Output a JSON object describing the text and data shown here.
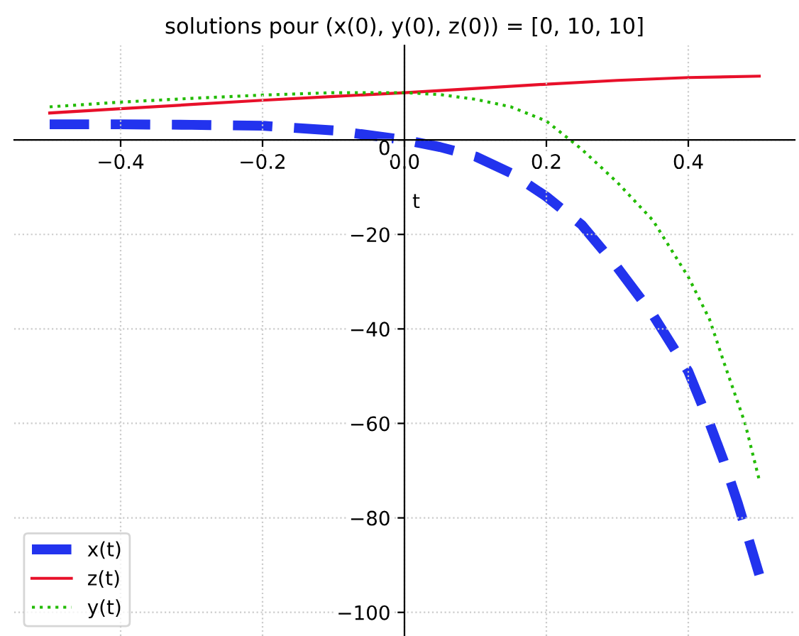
{
  "chart_data": {
    "type": "line",
    "title": "solutions pour (x(0), y(0), z(0)) = [0, 10, 10]",
    "xlabel": "t",
    "xlim": [
      -0.55,
      0.55
    ],
    "ylim": [
      -105,
      20
    ],
    "xticks": [
      -0.4,
      -0.2,
      {
        "value": 0,
        "label": "0.0"
      },
      0.2,
      0.4
    ],
    "yticks": [
      -100,
      -80,
      -60,
      -40,
      -20,
      0
    ],
    "grid": true,
    "legend": "bottom left",
    "series": [
      {
        "name": "x(t)",
        "color": "#2233ee",
        "line_style": "dashed",
        "x": [
          -0.5,
          -0.4,
          -0.3,
          -0.2,
          -0.1,
          0,
          0.05,
          0.1,
          0.15,
          0.2,
          0.25,
          0.3,
          0.35,
          0.4,
          0.43,
          0.45,
          0.47,
          0.5
        ],
        "values": [
          3.3,
          3.3,
          3.2,
          3,
          2,
          0,
          -1.5,
          -3.5,
          -7,
          -12,
          -18,
          -27,
          -37,
          -49,
          -60,
          -68,
          -77,
          -92
        ]
      },
      {
        "name": "z(t)",
        "color": "#e8102a",
        "line_style": "solid",
        "x": [
          -0.5,
          -0.4,
          -0.3,
          -0.2,
          -0.1,
          0,
          0.1,
          0.2,
          0.3,
          0.4,
          0.5
        ],
        "values": [
          5.7,
          6.6,
          7.5,
          8.4,
          9.2,
          10,
          10.9,
          11.8,
          12.6,
          13.2,
          13.5
        ]
      },
      {
        "name": "y(t)",
        "color": "#22bb00",
        "line_style": "dotted",
        "x": [
          -0.5,
          -0.4,
          -0.3,
          -0.2,
          -0.1,
          0,
          0.05,
          0.1,
          0.15,
          0.2,
          0.25,
          0.3,
          0.35,
          0.4,
          0.43,
          0.45,
          0.48,
          0.5
        ],
        "values": [
          7,
          8,
          8.8,
          9.5,
          10,
          10,
          9.6,
          8.6,
          7,
          4,
          -2,
          -9,
          -17,
          -29,
          -38,
          -47,
          -60,
          -72
        ]
      }
    ]
  }
}
